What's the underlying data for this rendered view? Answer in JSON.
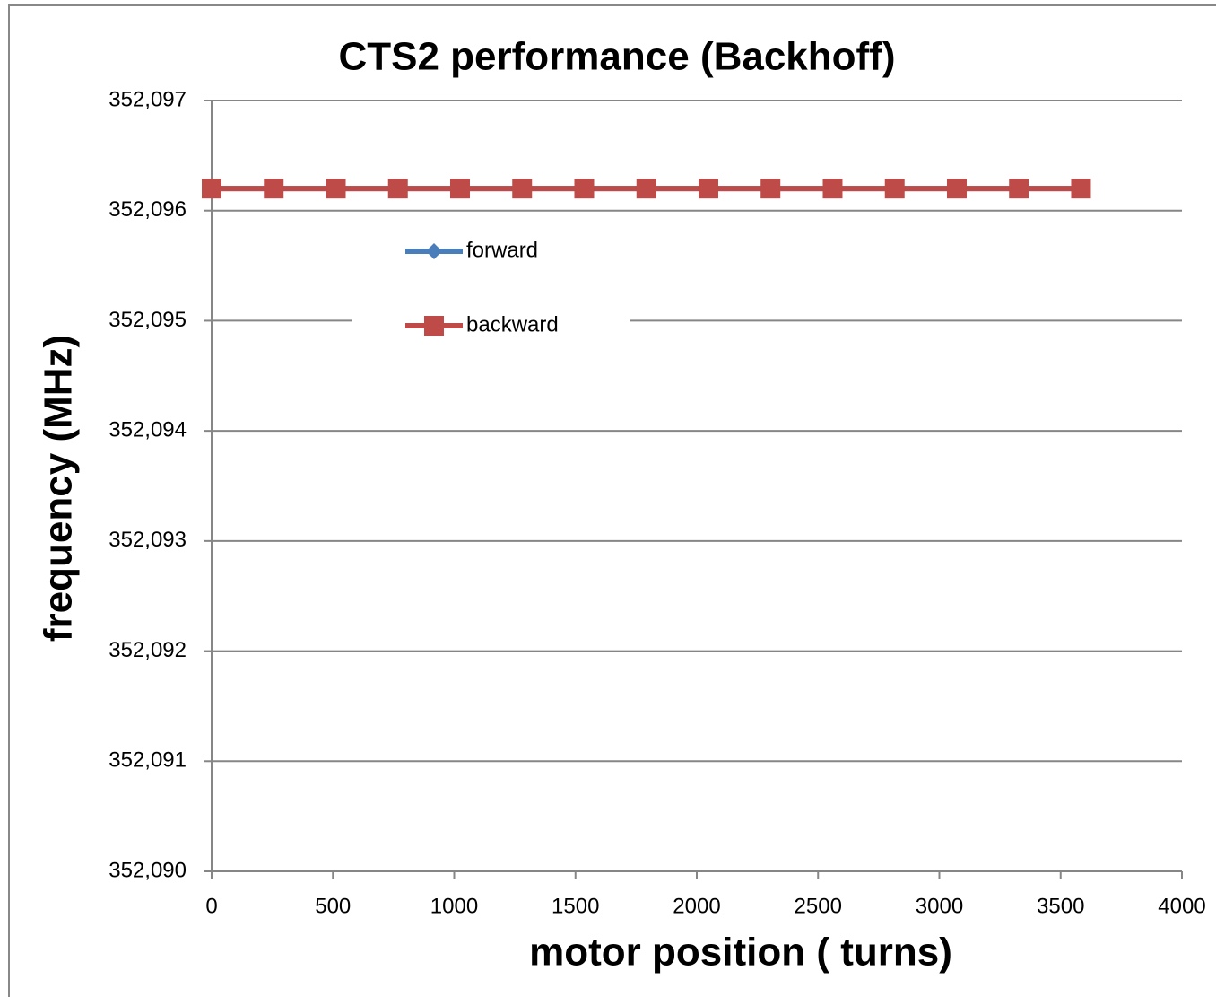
{
  "chart_data": {
    "type": "line",
    "title": "CTS2 performance (Backhoff)",
    "x_label": "motor position ( turns)",
    "y_label": "frequency (MHz)",
    "x": [
      0,
      256,
      512,
      768,
      1024,
      1280,
      1536,
      1792,
      2048,
      2304,
      2560,
      2816,
      3072,
      3328,
      3584
    ],
    "series": [
      {
        "name": "forward",
        "color": "#4a7ebb",
        "marker": "diamond",
        "values": [
          352.0962,
          352.0962,
          352.0962,
          352.0962,
          352.0962,
          352.0962,
          352.0962,
          352.0962,
          352.0962,
          352.0962,
          352.0962,
          352.0962,
          352.0962,
          352.0962,
          352.0962
        ]
      },
      {
        "name": "backward",
        "color": "#be4b48",
        "marker": "square",
        "values": [
          352.0962,
          352.0962,
          352.0962,
          352.0962,
          352.0962,
          352.0962,
          352.0962,
          352.0962,
          352.0962,
          352.0962,
          352.0962,
          352.0962,
          352.0962,
          352.0962,
          352.0962
        ]
      }
    ],
    "xlim": [
      0,
      4000
    ],
    "xticks": [
      0,
      500,
      1000,
      1500,
      2000,
      2500,
      3000,
      3500,
      4000
    ],
    "ylim": [
      352.09,
      352.097
    ],
    "yticks": [
      {
        "value": 352.09,
        "label": "352,090"
      },
      {
        "value": 352.091,
        "label": "352,091"
      },
      {
        "value": 352.092,
        "label": "352,092"
      },
      {
        "value": 352.093,
        "label": "352,093"
      },
      {
        "value": 352.094,
        "label": "352,094"
      },
      {
        "value": 352.095,
        "label": "352,095"
      },
      {
        "value": 352.096,
        "label": "352,096"
      },
      {
        "value": 352.097,
        "label": "352,097"
      }
    ],
    "grid": true,
    "legend": "upper left"
  }
}
